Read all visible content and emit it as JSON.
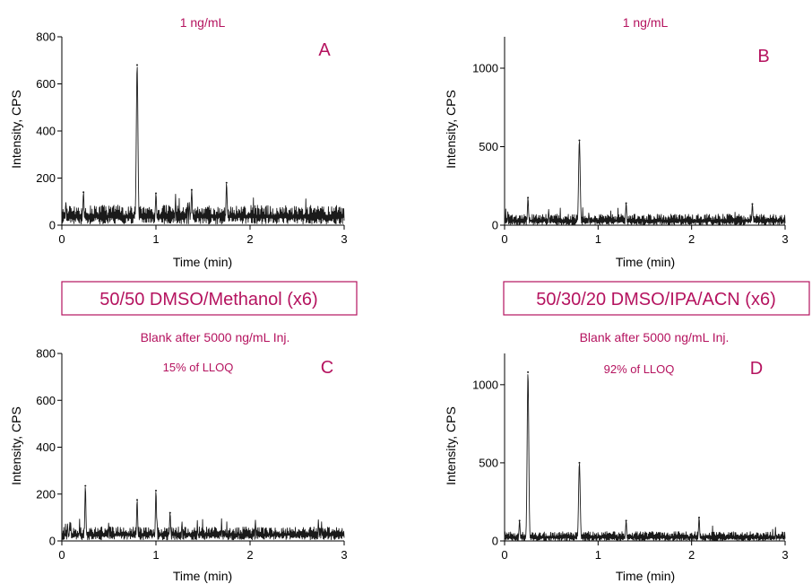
{
  "colors": {
    "accent": "#b5135f",
    "trace": "#1a1a1a",
    "axis": "#000000"
  },
  "labels": {
    "box_left": "50/50 DMSO/Methanol (x6)",
    "box_right": "50/30/20 DMSO/IPA/ACN (x6)"
  },
  "chart_data": [
    {
      "panel": "A",
      "type": "line",
      "header": "1 ng/mL",
      "note": "",
      "xlabel": "Time (min)",
      "ylabel": "Intensity, CPS",
      "xlim": [
        0,
        3
      ],
      "ylim": [
        0,
        800
      ],
      "xticks": [
        0,
        1,
        2,
        3
      ],
      "yticks": [
        0,
        200,
        400,
        600,
        800
      ],
      "baseline": [
        5,
        85
      ],
      "peaks": [
        {
          "x": 0.23,
          "y": 140
        },
        {
          "x": 0.8,
          "y": 680
        },
        {
          "x": 1.0,
          "y": 135
        },
        {
          "x": 1.38,
          "y": 150
        },
        {
          "x": 1.75,
          "y": 180
        }
      ]
    },
    {
      "panel": "B",
      "type": "line",
      "header": "1 ng/mL",
      "note": "",
      "xlabel": "Time (min)",
      "ylabel": "Intensity, CPS",
      "xlim": [
        0,
        3
      ],
      "ylim": [
        0,
        1200
      ],
      "xticks": [
        0,
        1,
        2,
        3
      ],
      "yticks": [
        0,
        500,
        1000
      ],
      "baseline": [
        0,
        70
      ],
      "peaks": [
        {
          "x": 0.25,
          "y": 175
        },
        {
          "x": 0.8,
          "y": 540
        },
        {
          "x": 1.3,
          "y": 140
        },
        {
          "x": 2.65,
          "y": 135
        }
      ]
    },
    {
      "panel": "C",
      "type": "line",
      "header": "Blank after 5000 ng/mL Inj.",
      "note": "15% of LLOQ",
      "xlabel": "Time (min)",
      "ylabel": "Intensity, CPS",
      "xlim": [
        0,
        3
      ],
      "ylim": [
        0,
        800
      ],
      "xticks": [
        0,
        1,
        2,
        3
      ],
      "yticks": [
        0,
        200,
        400,
        600,
        800
      ],
      "baseline": [
        5,
        60
      ],
      "peaks": [
        {
          "x": 0.25,
          "y": 235
        },
        {
          "x": 0.8,
          "y": 175
        },
        {
          "x": 1.0,
          "y": 215
        },
        {
          "x": 1.15,
          "y": 120
        }
      ]
    },
    {
      "panel": "D",
      "type": "line",
      "header": "Blank after 5000 ng/mL Inj.",
      "note": "92% of LLOQ",
      "xlabel": "Time (min)",
      "ylabel": "Intensity, CPS",
      "xlim": [
        0,
        3
      ],
      "ylim": [
        0,
        1200
      ],
      "xticks": [
        0,
        1,
        2,
        3
      ],
      "yticks": [
        0,
        500,
        1000
      ],
      "baseline": [
        0,
        60
      ],
      "peaks": [
        {
          "x": 0.25,
          "y": 1080
        },
        {
          "x": 0.8,
          "y": 500
        },
        {
          "x": 0.16,
          "y": 130
        },
        {
          "x": 1.3,
          "y": 130
        },
        {
          "x": 2.08,
          "y": 150
        }
      ]
    }
  ]
}
